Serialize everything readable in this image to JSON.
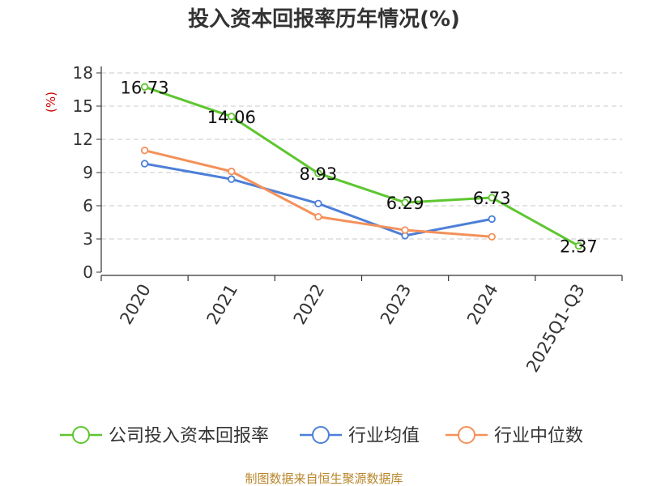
{
  "chart_data": {
    "type": "line",
    "title": "投入资本回报率历年情况(%)",
    "ylabel": "(%)",
    "xlabel": "",
    "ylim": [
      0,
      18
    ],
    "yticks": [
      0,
      3,
      6,
      9,
      12,
      15,
      18
    ],
    "grid": true,
    "categories": [
      "2020",
      "2021",
      "2022",
      "2023",
      "2024",
      "2025Q1-Q3"
    ],
    "series": [
      {
        "name": "公司投入资本回报率",
        "color": "#5ec630",
        "values": [
          16.73,
          14.06,
          8.93,
          6.29,
          6.73,
          2.37
        ],
        "labels": [
          "16.73",
          "14.06",
          "8.93",
          "6.29",
          "6.73",
          "2.37"
        ]
      },
      {
        "name": "行业均值",
        "color": "#4d7fd8",
        "values": [
          9.8,
          8.4,
          6.2,
          3.3,
          4.8,
          null
        ]
      },
      {
        "name": "行业中位数",
        "color": "#f4915a",
        "values": [
          11.0,
          9.1,
          5.0,
          3.8,
          3.2,
          null
        ]
      }
    ],
    "legend_position": "bottom",
    "source": "制图数据来自恒生聚源数据库"
  }
}
